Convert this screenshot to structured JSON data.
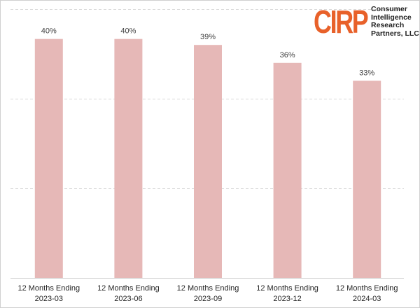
{
  "logo": {
    "mark": "CIRP",
    "lines": [
      "Consumer",
      "Intelligence",
      "Research",
      "Partners, LLC"
    ],
    "mark_color": "#e8612a"
  },
  "chart_data": {
    "type": "bar",
    "categories": [
      [
        "12 Months Ending",
        "2023-03"
      ],
      [
        "12 Months Ending",
        "2023-06"
      ],
      [
        "12 Months Ending",
        "2023-09"
      ],
      [
        "12 Months Ending",
        "2023-12"
      ],
      [
        "12 Months Ending",
        "2024-03"
      ]
    ],
    "values": [
      40,
      40,
      39,
      36,
      33
    ],
    "value_labels": [
      "40%",
      "40%",
      "39%",
      "36%",
      "33%"
    ],
    "ylim": [
      0,
      45
    ],
    "gridlines": [
      15,
      30,
      45
    ],
    "grid": true,
    "bar_color": "#e6b8b7",
    "title": "",
    "xlabel": "",
    "ylabel": ""
  }
}
